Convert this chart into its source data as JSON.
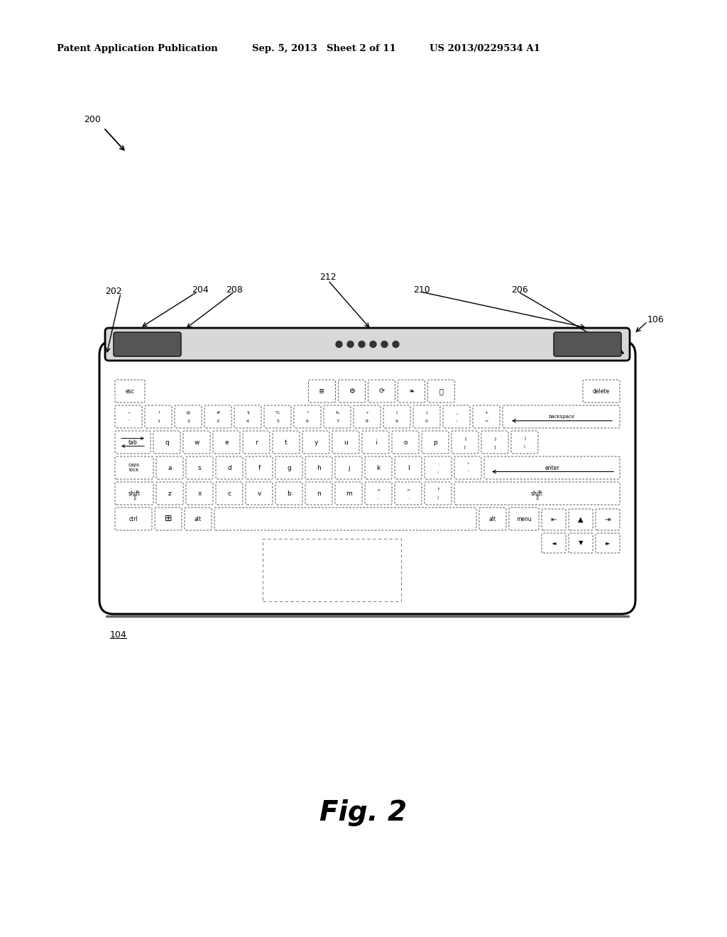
{
  "bg_color": "#ffffff",
  "header_text": "Patent Application Publication",
  "header_date": "Sep. 5, 2013",
  "header_sheet": "Sheet 2 of 11",
  "header_patent": "US 2013/0229534 A1",
  "fig_label": "Fig. 2",
  "ref_200": "200",
  "ref_202": "202",
  "ref_204": "204",
  "ref_206": "206",
  "ref_208": "208",
  "ref_210": "210",
  "ref_212": "212",
  "ref_106": "106",
  "ref_104": "104"
}
